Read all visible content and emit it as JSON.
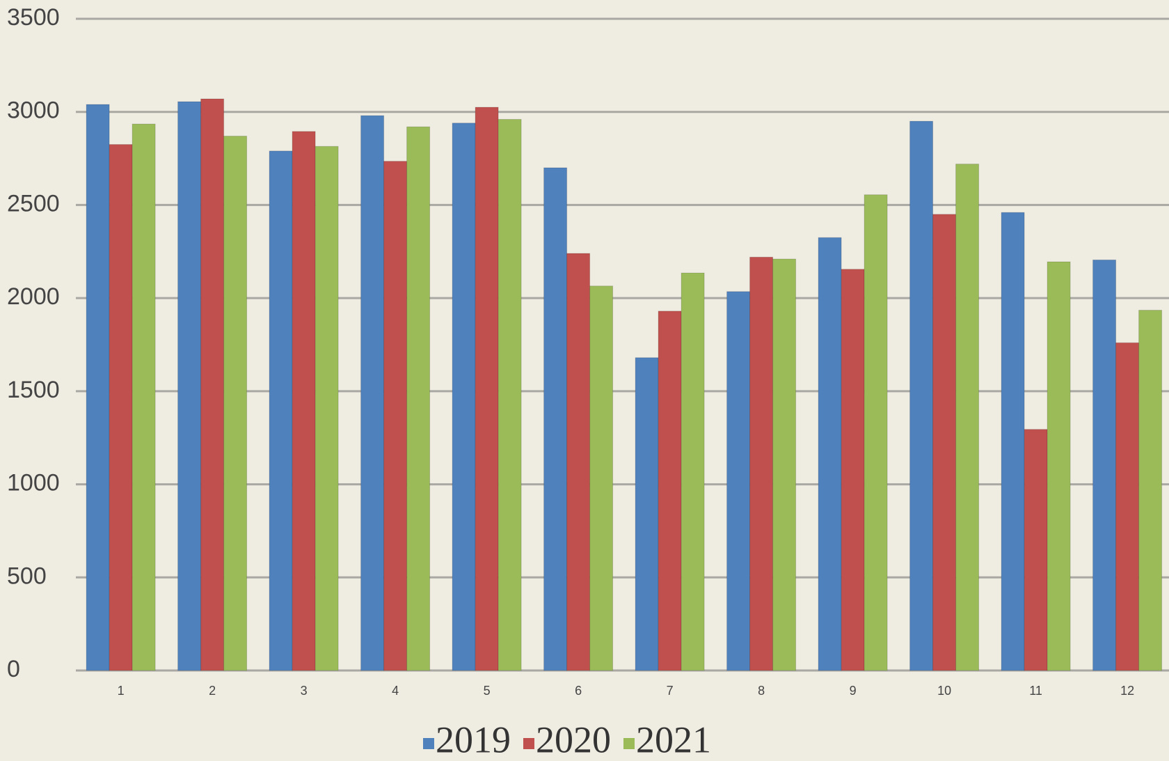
{
  "chart_data": {
    "type": "bar",
    "categories": [
      "1",
      "2",
      "3",
      "4",
      "5",
      "6",
      "7",
      "8",
      "9",
      "10",
      "11",
      "12"
    ],
    "series": [
      {
        "name": "2019",
        "color": "#4f81bd",
        "values": [
          3040,
          3055,
          2790,
          2980,
          2940,
          2700,
          1680,
          2035,
          2325,
          2950,
          2460,
          2205
        ]
      },
      {
        "name": "2020",
        "color": "#c0504d",
        "values": [
          2825,
          3070,
          2895,
          2735,
          3025,
          2240,
          1930,
          2220,
          2155,
          2450,
          1295,
          1760
        ]
      },
      {
        "name": "2021",
        "color": "#9bbb59",
        "values": [
          2935,
          2870,
          2815,
          2920,
          2960,
          2065,
          2135,
          2210,
          2555,
          2720,
          2195,
          1935
        ]
      }
    ],
    "ylim": [
      0,
      3500
    ],
    "yticks": [
      0,
      500,
      1000,
      1500,
      2000,
      2500,
      3000,
      3500
    ],
    "grid": true
  }
}
